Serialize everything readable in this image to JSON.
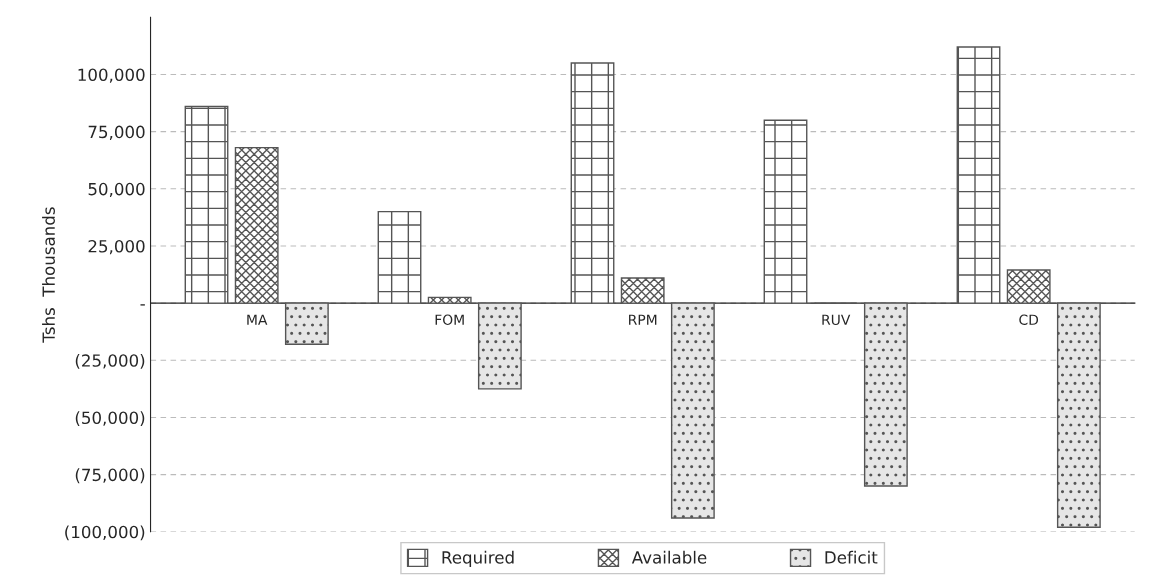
{
  "chart_data": {
    "type": "bar",
    "ylabel": "Tshs  Thousands",
    "categories": [
      "MA",
      "FOM",
      "RPM",
      "RUV",
      "CD"
    ],
    "series": [
      {
        "name": "Required",
        "color": "#555555",
        "values": [
          86000,
          40000,
          105000,
          80000,
          112000
        ]
      },
      {
        "name": "Available",
        "color": "#555555",
        "values": [
          68000,
          2500,
          11000,
          0,
          14500
        ]
      },
      {
        "name": "Deficit",
        "color": "#555555",
        "values": [
          -18000,
          -37500,
          -94000,
          -80000,
          -98000
        ]
      }
    ],
    "ylim": [
      -100000,
      125000
    ],
    "yticks": [
      {
        "value": -100000,
        "label": "(100,000)"
      },
      {
        "value": -75000,
        "label": "(75,000)"
      },
      {
        "value": -50000,
        "label": "(50,000)"
      },
      {
        "value": -25000,
        "label": "(25,000)"
      },
      {
        "value": 0,
        "label": "-"
      },
      {
        "value": 25000,
        "label": "25,000"
      },
      {
        "value": 50000,
        "label": "50,000"
      },
      {
        "value": 75000,
        "label": "75,000"
      },
      {
        "value": 100000,
        "label": "100,000"
      }
    ],
    "grid": "y",
    "legend": "bottom"
  }
}
